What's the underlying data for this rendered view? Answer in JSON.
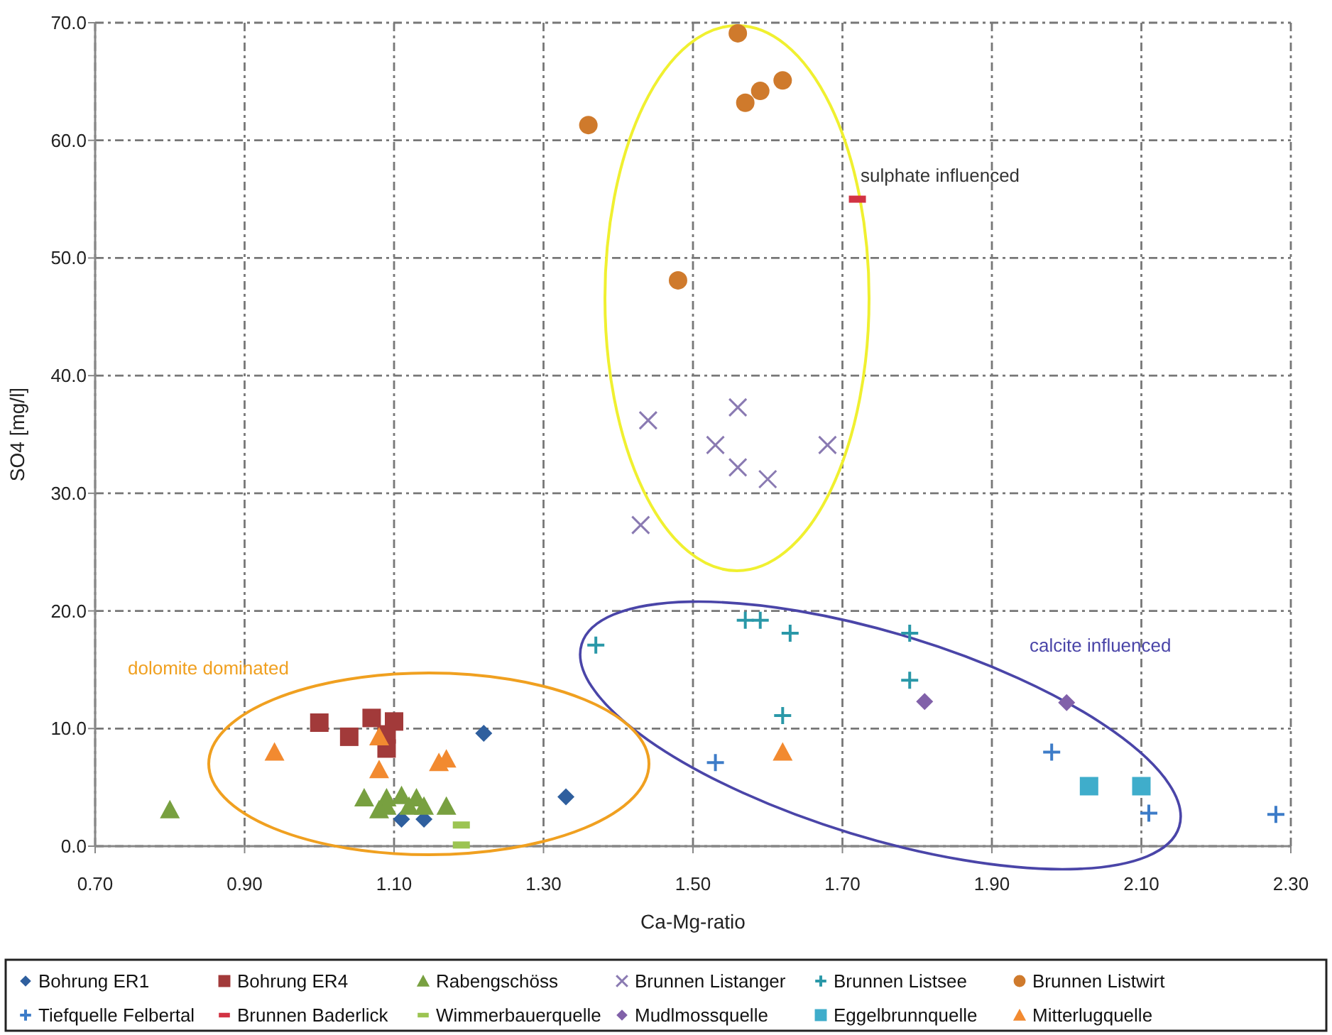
{
  "chart_data": {
    "type": "scatter",
    "xlabel": "Ca-Mg-ratio",
    "ylabel": "SO4 [mg/l]",
    "xlim": [
      0.7,
      2.3
    ],
    "xticks": [
      {
        "value": 0.7,
        "label": "0.70"
      },
      {
        "value": 0.9,
        "label": "0.90"
      },
      {
        "value": 1.1,
        "label": "1.10"
      },
      {
        "value": 1.3,
        "label": "1.30"
      },
      {
        "value": 1.5,
        "label": "1.50"
      },
      {
        "value": 1.7,
        "label": "1.70"
      },
      {
        "value": 1.9,
        "label": "1.90"
      },
      {
        "value": 2.1,
        "label": "2.10"
      },
      {
        "value": 2.3,
        "label": "2.30"
      }
    ],
    "ylim": [
      0,
      70
    ],
    "yticks": [
      {
        "value": 0,
        "label": "0.0"
      },
      {
        "value": 10,
        "label": "10.0"
      },
      {
        "value": 20,
        "label": "20.0"
      },
      {
        "value": 30,
        "label": "30.0"
      },
      {
        "value": 40,
        "label": "40.0"
      },
      {
        "value": 50,
        "label": "50.0"
      },
      {
        "value": 60,
        "label": "60.0"
      },
      {
        "value": 70,
        "label": "70.0"
      }
    ],
    "grid": true,
    "legend": "bottom",
    "annotations": [
      "sulphate influenced",
      "calcite influenced",
      "dolomite dominated"
    ],
    "series": [
      {
        "name": "Bohrung ER1",
        "color": "#2f5f9e",
        "marker": "diamond",
        "x": [
          1.22,
          1.33,
          1.11,
          1.14
        ],
        "values": [
          9.6,
          4.2,
          2.3,
          2.3
        ]
      },
      {
        "name": "Bohrung ER4",
        "color": "#a23a3a",
        "marker": "square",
        "x": [
          1.0,
          1.04,
          1.07,
          1.09,
          1.1,
          1.09
        ],
        "values": [
          10.5,
          9.3,
          10.9,
          9.5,
          10.6,
          8.3
        ]
      },
      {
        "name": "Rabengschöss",
        "color": "#78a040",
        "marker": "triangle",
        "x": [
          0.8,
          1.06,
          1.09,
          1.11,
          1.13,
          1.09,
          1.12,
          1.14,
          1.17,
          1.08
        ],
        "values": [
          3.1,
          4.1,
          4.1,
          4.3,
          4.1,
          3.4,
          3.4,
          3.4,
          3.4,
          3.1
        ]
      },
      {
        "name": "Brunnen Listanger",
        "color": "#8a7ab2",
        "marker": "x",
        "x": [
          1.44,
          1.56,
          1.53,
          1.56,
          1.6,
          1.68,
          1.43
        ],
        "values": [
          36.2,
          37.3,
          34.1,
          32.2,
          31.2,
          34.1,
          27.3
        ]
      },
      {
        "name": "Brunnen Listsee",
        "color": "#2a98a8",
        "marker": "cross",
        "x": [
          1.37,
          1.57,
          1.59,
          1.63,
          1.79,
          1.79,
          1.62
        ],
        "values": [
          17.1,
          19.2,
          19.2,
          18.1,
          18.1,
          14.1,
          11.1
        ]
      },
      {
        "name": "Brunnen Listwirt",
        "color": "#cf7a2c",
        "marker": "circle",
        "x": [
          1.56,
          1.36,
          1.57,
          1.59,
          1.62,
          1.48
        ],
        "values": [
          69.1,
          61.3,
          63.2,
          64.2,
          65.1,
          48.1
        ]
      },
      {
        "name": "Tiefquelle Felbertal",
        "color": "#3d7cc8",
        "marker": "cross",
        "x": [
          1.53,
          1.98,
          2.11,
          2.28
        ],
        "values": [
          7.1,
          8.0,
          2.8,
          2.7
        ]
      },
      {
        "name": "Brunnen Baderlick",
        "color": "#d23343",
        "x": [
          1.72
        ],
        "values": [
          55.0
        ]
      },
      {
        "name": "Wimmerbauerquelle",
        "color": "#9cc452",
        "x": [
          1.19,
          1.19
        ],
        "values": [
          1.8,
          0.1
        ]
      },
      {
        "name": "Mudlmossquelle",
        "color": "#8161a9",
        "marker": "diamond",
        "x": [
          1.81,
          2.0
        ],
        "values": [
          12.3,
          12.2
        ]
      },
      {
        "name": "Eggelbrunnquelle",
        "color": "#3fadcb",
        "marker": "square",
        "x": [
          2.03,
          2.1
        ],
        "values": [
          5.1,
          5.1
        ]
      },
      {
        "name": "Mitterlugquelle",
        "color": "#f28a30",
        "marker": "triangle",
        "x": [
          1.62,
          0.94,
          1.08,
          1.08,
          1.16,
          1.17
        ],
        "values": [
          8.0,
          8.0,
          9.3,
          6.5,
          7.1,
          7.4
        ]
      }
    ]
  }
}
